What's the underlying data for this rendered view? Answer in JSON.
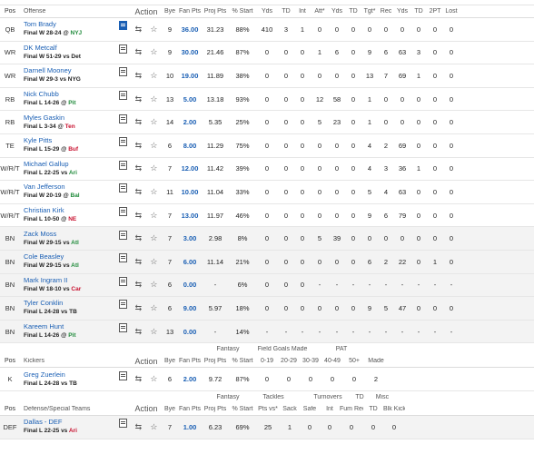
{
  "offense_header": {
    "pos": "Pos",
    "offense": "Offense",
    "action": "Action",
    "bye": "Bye",
    "fan_pts": "Fan Pts",
    "proj_pts": "Proj Pts",
    "pct_start": "% Start",
    "stats": [
      "Yds",
      "TD",
      "Int",
      "Att*",
      "Yds",
      "TD",
      "Tgt*",
      "Rec",
      "Yds",
      "TD",
      "2PT",
      "Lost"
    ]
  },
  "offense_rows": [
    {
      "pos": "QB",
      "name": "Tom Brady",
      "result": "Final W 28-24 @ ",
      "opp": "NYJ",
      "opp_color": "green",
      "bye": "9",
      "fan": "36.00",
      "proj": "31.23",
      "start": "88%",
      "stats": [
        "410",
        "3",
        "1",
        "0",
        "0",
        "0",
        "0",
        "0",
        "0",
        "0",
        "0",
        "0"
      ],
      "note": "blue"
    },
    {
      "pos": "WR",
      "name": "DK Metcalf",
      "result": "Final W 51-29 vs ",
      "opp": "Det",
      "opp_color": "none",
      "bye": "9",
      "fan": "30.00",
      "proj": "21.46",
      "start": "87%",
      "stats": [
        "0",
        "0",
        "0",
        "1",
        "6",
        "0",
        "9",
        "6",
        "63",
        "3",
        "0",
        "0"
      ],
      "note": "plain"
    },
    {
      "pos": "WR",
      "name": "Darnell Mooney",
      "result": "Final W 29-3 vs ",
      "opp": "NYG",
      "opp_color": "none",
      "bye": "10",
      "fan": "19.00",
      "proj": "11.89",
      "start": "38%",
      "stats": [
        "0",
        "0",
        "0",
        "0",
        "0",
        "0",
        "13",
        "7",
        "69",
        "1",
        "0",
        "0"
      ],
      "note": "plain"
    },
    {
      "pos": "RB",
      "name": "Nick Chubb",
      "result": "Final L 14-26 @ ",
      "opp": "Pit",
      "opp_color": "green",
      "bye": "13",
      "fan": "5.00",
      "proj": "13.18",
      "start": "93%",
      "stats": [
        "0",
        "0",
        "0",
        "12",
        "58",
        "0",
        "1",
        "0",
        "0",
        "0",
        "0",
        "0"
      ],
      "note": "plain"
    },
    {
      "pos": "RB",
      "name": "Myles Gaskin",
      "result": "Final L 3-34 @ ",
      "opp": "Ten",
      "opp_color": "red",
      "bye": "14",
      "fan": "2.00",
      "proj": "5.35",
      "start": "25%",
      "stats": [
        "0",
        "0",
        "0",
        "5",
        "23",
        "0",
        "1",
        "0",
        "0",
        "0",
        "0",
        "0"
      ],
      "note": "plain"
    },
    {
      "pos": "TE",
      "name": "Kyle Pitts",
      "result": "Final L 15-29 @ ",
      "opp": "Buf",
      "opp_color": "red",
      "bye": "6",
      "fan": "8.00",
      "proj": "11.29",
      "start": "75%",
      "stats": [
        "0",
        "0",
        "0",
        "0",
        "0",
        "0",
        "4",
        "2",
        "69",
        "0",
        "0",
        "0"
      ],
      "note": "plain"
    },
    {
      "pos": "W/R/T",
      "name": "Michael Gallup",
      "result": "Final L 22-25 vs ",
      "opp": "Ari",
      "opp_color": "green",
      "bye": "7",
      "fan": "12.00",
      "proj": "11.42",
      "start": "39%",
      "stats": [
        "0",
        "0",
        "0",
        "0",
        "0",
        "0",
        "4",
        "3",
        "36",
        "1",
        "0",
        "0"
      ],
      "note": "plain"
    },
    {
      "pos": "W/R/T",
      "name": "Van Jefferson",
      "result": "Final W 20-19 @ ",
      "opp": "Bal",
      "opp_color": "green",
      "bye": "11",
      "fan": "10.00",
      "proj": "11.04",
      "start": "33%",
      "stats": [
        "0",
        "0",
        "0",
        "0",
        "0",
        "0",
        "5",
        "4",
        "63",
        "0",
        "0",
        "0"
      ],
      "note": "plain"
    },
    {
      "pos": "W/R/T",
      "name": "Christian Kirk",
      "result": "Final L 10-50 @ ",
      "opp": "NE",
      "opp_color": "red",
      "bye": "7",
      "fan": "13.00",
      "proj": "11.97",
      "start": "46%",
      "stats": [
        "0",
        "0",
        "0",
        "0",
        "0",
        "0",
        "9",
        "6",
        "79",
        "0",
        "0",
        "0"
      ],
      "note": "plain"
    },
    {
      "pos": "BN",
      "name": "Zack Moss",
      "result": "Final W 29-15 vs ",
      "opp": "Atl",
      "opp_color": "green",
      "bye": "7",
      "fan": "3.00",
      "proj": "2.98",
      "start": "8%",
      "stats": [
        "0",
        "0",
        "0",
        "5",
        "39",
        "0",
        "0",
        "0",
        "0",
        "0",
        "0",
        "0"
      ],
      "note": "plain",
      "bench": true
    },
    {
      "pos": "BN",
      "name": "Cole Beasley",
      "result": "Final W 29-15 vs ",
      "opp": "Atl",
      "opp_color": "green",
      "bye": "7",
      "fan": "6.00",
      "proj": "11.14",
      "start": "21%",
      "stats": [
        "0",
        "0",
        "0",
        "0",
        "0",
        "0",
        "6",
        "2",
        "22",
        "0",
        "1",
        "0"
      ],
      "note": "plain",
      "bench": true
    },
    {
      "pos": "BN",
      "name": "Mark Ingram II",
      "result": "Final W 18-10 vs ",
      "opp": "Car",
      "opp_color": "red",
      "bye": "6",
      "fan": "0.00",
      "proj": "-",
      "start": "6%",
      "stats": [
        "0",
        "0",
        "0",
        "-",
        "-",
        "-",
        "-",
        "-",
        "-",
        "-",
        "-",
        "-"
      ],
      "note": "plain",
      "bench": true
    },
    {
      "pos": "BN",
      "name": "Tyler Conklin",
      "result": "Final L 24-28 vs ",
      "opp": "TB",
      "opp_color": "none",
      "bye": "6",
      "fan": "9.00",
      "proj": "5.97",
      "start": "18%",
      "stats": [
        "0",
        "0",
        "0",
        "0",
        "0",
        "0",
        "9",
        "5",
        "47",
        "0",
        "0",
        "0"
      ],
      "note": "plain",
      "bench": true
    },
    {
      "pos": "BN",
      "name": "Kareem Hunt",
      "result": "Final L 14-26 @ ",
      "opp": "Pit",
      "opp_color": "green",
      "bye": "13",
      "fan": "0.00",
      "proj": "-",
      "start": "14%",
      "stats": [
        "-",
        "-",
        "-",
        "-",
        "-",
        "-",
        "-",
        "-",
        "-",
        "-",
        "-",
        "-"
      ],
      "note": "plain",
      "bench": true
    }
  ],
  "kicker_group": {
    "fantasy": "Fantasy",
    "fg_made": "Field Goals Made",
    "pat": "PAT"
  },
  "kicker_header": {
    "pos": "Pos",
    "label": "Kickers",
    "action": "Action",
    "bye": "Bye",
    "fan_pts": "Fan Pts",
    "proj_pts": "Proj Pts",
    "pct_start": "% Start",
    "stats": [
      "0-19",
      "20-29",
      "30-39",
      "40-49",
      "50+",
      "Made"
    ]
  },
  "kicker_row": {
    "pos": "K",
    "name": "Greg Zuerlein",
    "result": "Final L 24-28 vs ",
    "opp": "TB",
    "opp_color": "none",
    "bye": "6",
    "fan": "2.00",
    "proj": "9.72",
    "start": "87%",
    "stats": [
      "0",
      "0",
      "0",
      "0",
      "0",
      "2"
    ]
  },
  "def_group": {
    "fantasy": "Fantasy",
    "tackles": "Tackles",
    "turnovers": "Turnovers",
    "td": "TD",
    "misc": "Misc"
  },
  "def_header": {
    "pos": "Pos",
    "label": "Defense/Special Teams",
    "action": "Action",
    "bye": "Bye",
    "fan_pts": "Fan Pts",
    "proj_pts": "Proj Pts",
    "pct_start": "% Start",
    "stats": [
      "Pts vs*",
      "Sack",
      "Safe",
      "Int",
      "Fum Rec",
      "TD",
      "Blk Kick"
    ]
  },
  "def_row": {
    "pos": "DEF",
    "name": "Dallas",
    "name_suffix": " - DEF",
    "result": "Final L 22-25 vs ",
    "opp": "Ari",
    "opp_color": "red",
    "bye": "7",
    "fan": "1.00",
    "proj": "6.23",
    "start": "69%",
    "stats": [
      "25",
      "1",
      "0",
      "0",
      "0",
      "0",
      "0"
    ]
  },
  "icons": {
    "swap": "⇆",
    "star": "☆"
  }
}
